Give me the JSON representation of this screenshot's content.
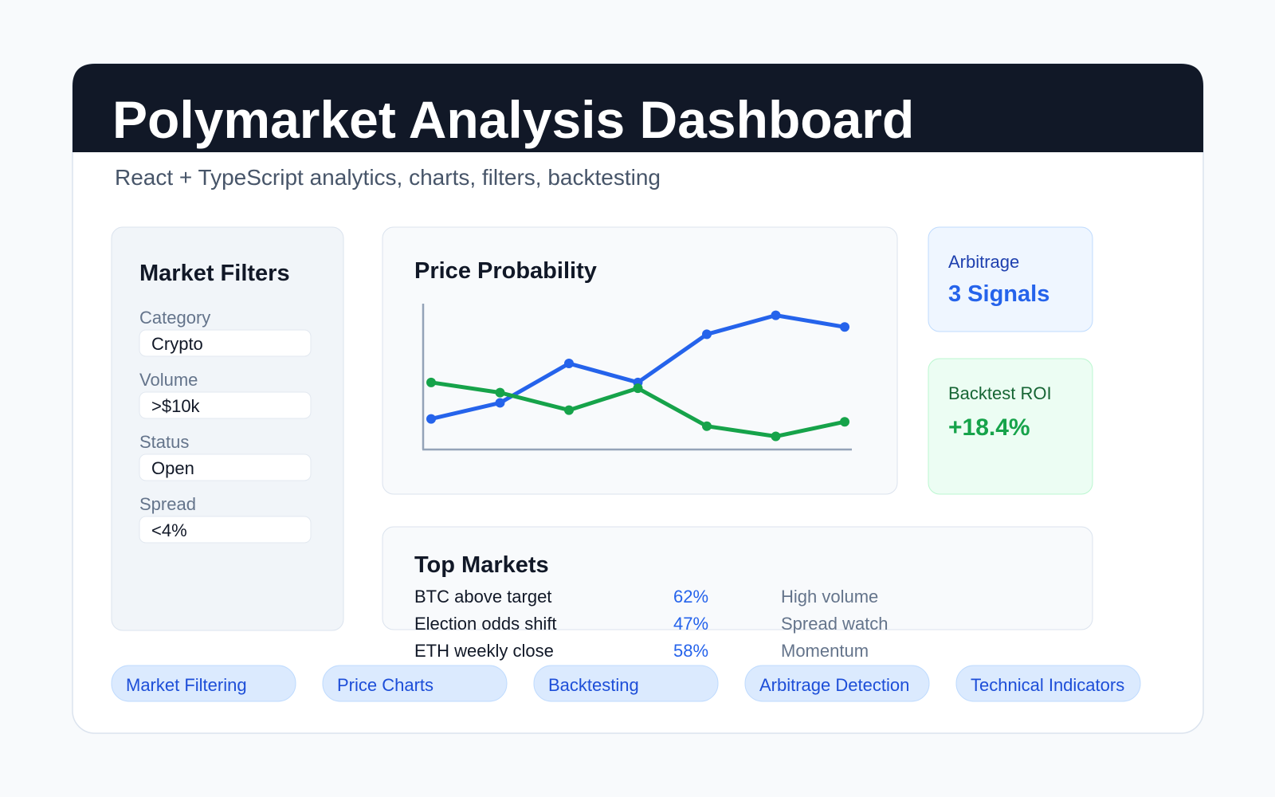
{
  "header": {
    "title": "Polymarket Analysis Dashboard",
    "subtitle": "React + TypeScript analytics, charts, filters, backtesting"
  },
  "filters": {
    "title": "Market Filters",
    "fields": [
      {
        "label": "Category",
        "value": "Crypto"
      },
      {
        "label": "Volume",
        "value": ">$10k"
      },
      {
        "label": "Status",
        "value": "Open"
      },
      {
        "label": "Spread",
        "value": "<4%"
      }
    ]
  },
  "chart_data": {
    "type": "line",
    "title": "Price Probability",
    "categories": [
      null,
      null,
      null,
      null,
      null,
      null,
      null
    ],
    "series": [
      {
        "color": "#2563eb",
        "values": [
          21,
          32,
          59,
          46,
          79,
          92,
          84
        ]
      },
      {
        "color": "#16a34a",
        "values": [
          46,
          39,
          27,
          42,
          16,
          9,
          19
        ]
      }
    ],
    "ylim": [
      0,
      100
    ]
  },
  "arbitrage": {
    "label": "Arbitrage",
    "value": "3 Signals"
  },
  "backtest": {
    "label": "Backtest ROI",
    "value": "+18.4%"
  },
  "top_markets": {
    "title": "Top Markets",
    "rows": [
      [
        "BTC above target",
        "62%",
        "High volume"
      ],
      [
        "Election odds shift",
        "47%",
        "Spread watch"
      ],
      [
        "ETH weekly close",
        "58%",
        "Momentum"
      ]
    ]
  },
  "features": [
    "Market Filtering",
    "Price Charts",
    "Backtesting",
    "Arbitrage Detection",
    "Technical Indicators"
  ]
}
